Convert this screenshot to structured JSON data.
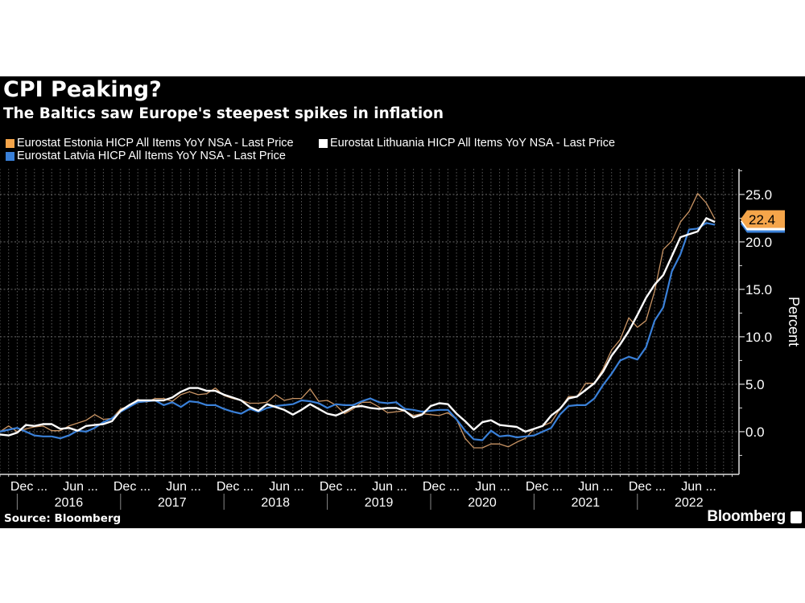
{
  "title": "CPI Peaking?",
  "subtitle": "The Baltics saw Europe's steepest spikes in inflation",
  "source": "Source: Bloomberg",
  "logo": "Bloomberg",
  "chart_data": {
    "type": "line",
    "title": "CPI Peaking?",
    "subtitle": "The Baltics saw Europe's steepest spikes in inflation",
    "ylabel": "Percent",
    "xlabel": "",
    "y_axis_side": "right",
    "ylim": [
      -4.5,
      27.7
    ],
    "yticks": [
      "0.0",
      "5.0",
      "10.0",
      "15.0",
      "20.0",
      "25.0"
    ],
    "grid": true,
    "legend_placement": "top-left",
    "x_start": "2015-11",
    "x_end": "2022-10",
    "x_frequency": "monthly",
    "xtick_labels": [
      "Dec ...",
      "Jun ...",
      "Dec ...",
      "Jun ...",
      "Dec ...",
      "Jun ...",
      "Dec ...",
      "Jun ...",
      "Dec ...",
      "Jun ...",
      "Dec ...",
      "Jun ...",
      "Dec ...",
      "Jun ..."
    ],
    "year_labels": [
      "2016",
      "2017",
      "2018",
      "2019",
      "2020",
      "2021",
      "2022"
    ],
    "last_value_label": "22.4",
    "series": [
      {
        "name": "Eurostat Estonia HICP All Items YoY NSA - Last Price",
        "color": "#f5a54a",
        "line_color": "#c99464",
        "values": [
          0,
          0.6,
          0,
          0.3,
          0.5,
          0.6,
          0.1,
          0.1,
          0.6,
          0.9,
          1.2,
          1.8,
          1.3,
          1.4,
          2.4,
          2.7,
          3.4,
          3.1,
          3.5,
          3.5,
          3.2,
          3.9,
          4.2,
          3.9,
          4.0,
          4.6,
          3.8,
          3.5,
          3.3,
          3.0,
          3.0,
          3.1,
          3.9,
          3.3,
          3.5,
          3.5,
          4.5,
          3.2,
          3.3,
          2.8,
          1.9,
          2.4,
          3.1,
          3.1,
          2.6,
          2.0,
          2.1,
          2.2,
          1.7,
          1.9,
          1.8,
          1.7,
          2.0,
          1.3,
          -0.7,
          -1.7,
          -1.7,
          -1.3,
          -1.3,
          -1.6,
          -1.1,
          -0.7,
          0.3,
          0.6,
          1.0,
          2.4,
          3.7,
          3.7,
          5.1,
          5.1,
          6.6,
          8.6,
          9.7,
          12.0,
          11.0,
          11.7,
          14.8,
          19.2,
          20.1,
          22.1,
          23.2,
          25.1,
          24.1,
          22.4
        ]
      },
      {
        "name": "Eurostat Lithuania HICP All Items YoY NSA - Last Price",
        "color": "#ffffff",
        "line_color": "#ffffff",
        "values": [
          -0.3,
          -0.4,
          -0.1,
          0.7,
          0.6,
          0.8,
          0.8,
          0.3,
          0.4,
          0.1,
          0.6,
          0.7,
          0.8,
          1.1,
          2.2,
          2.8,
          3.3,
          3.3,
          3.3,
          3.3,
          3.6,
          4.2,
          4.6,
          4.6,
          4.3,
          4.3,
          3.9,
          3.6,
          3.3,
          2.6,
          2.2,
          2.9,
          2.6,
          2.3,
          1.8,
          2.3,
          2.9,
          2.4,
          1.9,
          1.7,
          2.1,
          2.6,
          2.7,
          2.5,
          2.4,
          2.5,
          2.5,
          2.2,
          1.5,
          1.8,
          2.7,
          3.0,
          2.9,
          1.9,
          1.1,
          0.2,
          1.0,
          1.2,
          0.7,
          0.6,
          0.5,
          0.0,
          0.3,
          0.6,
          1.7,
          2.4,
          3.5,
          3.7,
          4.4,
          5.1,
          6.3,
          8.0,
          9.2,
          10.6,
          12.3,
          14.1,
          15.5,
          16.5,
          18.5,
          20.5,
          20.8,
          21.1,
          22.5,
          22.1
        ]
      },
      {
        "name": "Eurostat Latvia HICP All Items YoY NSA - Last Price",
        "color": "#3a80d8",
        "line_color": "#3a80d8",
        "values": [
          0.0,
          0.2,
          0.4,
          0.0,
          -0.4,
          -0.5,
          -0.5,
          -0.7,
          -0.4,
          0.1,
          0.0,
          0.4,
          1.0,
          1.4,
          2.1,
          2.6,
          3.1,
          3.2,
          3.3,
          2.8,
          3.1,
          2.6,
          3.2,
          3.1,
          2.8,
          2.8,
          2.4,
          2.1,
          1.9,
          2.4,
          2.1,
          2.5,
          2.7,
          2.8,
          2.9,
          3.3,
          3.2,
          3.0,
          2.5,
          2.9,
          2.8,
          2.8,
          3.2,
          3.5,
          3.1,
          3.0,
          3.1,
          2.4,
          2.3,
          2.1,
          2.2,
          2.3,
          2.3,
          1.3,
          0.1,
          -0.8,
          -0.9,
          0.1,
          -0.5,
          -0.4,
          -0.6,
          -0.5,
          -0.4,
          0.0,
          0.4,
          1.8,
          2.7,
          2.8,
          2.8,
          3.5,
          4.9,
          6.1,
          7.5,
          7.9,
          7.6,
          8.9,
          11.7,
          13.1,
          16.9,
          18.7,
          21.3,
          21.4,
          22.0,
          21.8
        ]
      }
    ]
  }
}
